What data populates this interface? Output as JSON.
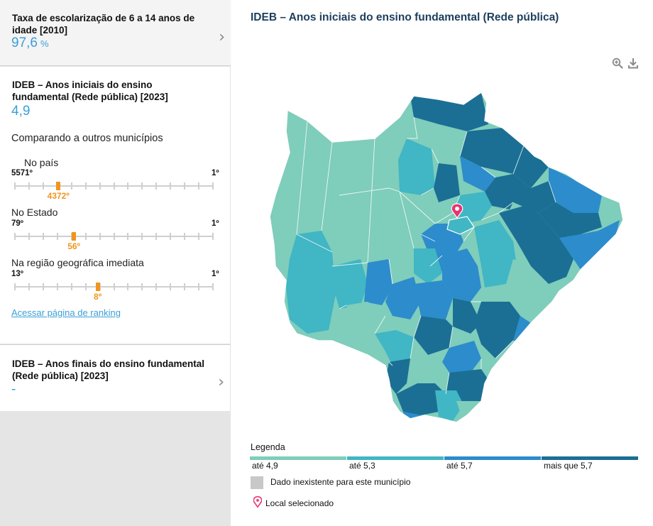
{
  "indicator_1": {
    "title": "Taxa de escolarização de 6 a 14 anos de idade [2010]",
    "value": "97,6",
    "unit": "%"
  },
  "indicator_2": {
    "title": "IDEB – Anos iniciais do ensino fundamental (Rede pública) [2023]",
    "value": "4,9",
    "comparison_heading": "Comparando a outros municípios",
    "rankings": [
      {
        "label": "No país",
        "min": "5571º",
        "max": "1º",
        "position": "4372º",
        "rank": 4372,
        "total": 5571
      },
      {
        "label": "No Estado",
        "min": "79º",
        "max": "1º",
        "position": "56º",
        "rank": 56,
        "total": 79
      },
      {
        "label": "Na região geográfica imediata",
        "min": "13º",
        "max": "1º",
        "position": "8º",
        "rank": 8,
        "total": 13
      }
    ],
    "ranking_link": "Acessar página de ranking"
  },
  "indicator_3": {
    "title": "IDEB – Anos finais do ensino fundamental (Rede pública) [2023]",
    "value": "-"
  },
  "map": {
    "title": "IDEB – Anos iniciais do ensino fundamental (Rede pública)",
    "zoom_icon": "zoom-in-icon",
    "download_icon": "download-icon",
    "legend": {
      "title": "Legenda",
      "classes": [
        {
          "label": "até 4,9",
          "color": "#7fcdbb"
        },
        {
          "label": "até 5,3",
          "color": "#41b6c4"
        },
        {
          "label": "até 5,7",
          "color": "#2c8ccc"
        },
        {
          "label": "mais que 5,7",
          "color": "#1b6f94"
        }
      ],
      "no_data_label": "Dado inexistente para este município",
      "no_data_color": "#c8c8c8",
      "selected_label": "Local selecionado",
      "selected_color": "#e8336f"
    }
  }
}
